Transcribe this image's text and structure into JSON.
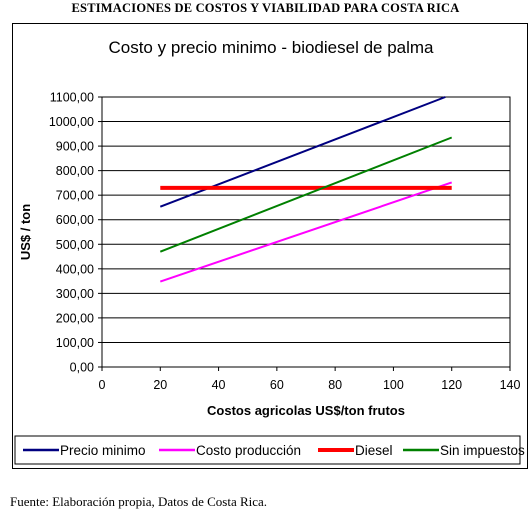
{
  "header": {
    "title": "ESTIMACIONES DE COSTOS Y VIABILIDAD PARA COSTA RICA"
  },
  "footer": {
    "source": "Fuente: Elaboración propia, Datos de Costa Rica."
  },
  "chart_data": {
    "type": "line",
    "title": "Costo y precio minimo - biodiesel de palma",
    "xlabel": "Costos agricolas US$/ton frutos",
    "ylabel": "US$ / ton",
    "xlim": [
      0,
      140
    ],
    "ylim": [
      0,
      1100
    ],
    "x_ticks": [
      0,
      20,
      40,
      60,
      80,
      100,
      120,
      140
    ],
    "x_tick_labels": [
      "0",
      "20",
      "40",
      "60",
      "80",
      "100",
      "120",
      "140"
    ],
    "y_ticks": [
      0,
      100,
      200,
      300,
      400,
      500,
      600,
      700,
      800,
      900,
      1000,
      1100
    ],
    "y_tick_labels": [
      "0,00",
      "100,00",
      "200,00",
      "300,00",
      "400,00",
      "500,00",
      "600,00",
      "700,00",
      "800,00",
      "900,00",
      "1000,00",
      "1100,00"
    ],
    "grid": "horizontal",
    "legend_position": "bottom",
    "series": [
      {
        "name": "Precio minimo",
        "color": "#000080",
        "x": [
          20,
          120
        ],
        "y": [
          653,
          1110
        ]
      },
      {
        "name": "Costo producción",
        "color": "#ff00ff",
        "x": [
          20,
          120
        ],
        "y": [
          348,
          752
        ]
      },
      {
        "name": "Diesel",
        "color": "#ff0000",
        "x": [
          20,
          120
        ],
        "y": [
          730,
          730
        ],
        "bold": true
      },
      {
        "name": "Sin impuestos",
        "color": "#008000",
        "x": [
          20,
          120
        ],
        "y": [
          470,
          935
        ]
      }
    ]
  }
}
